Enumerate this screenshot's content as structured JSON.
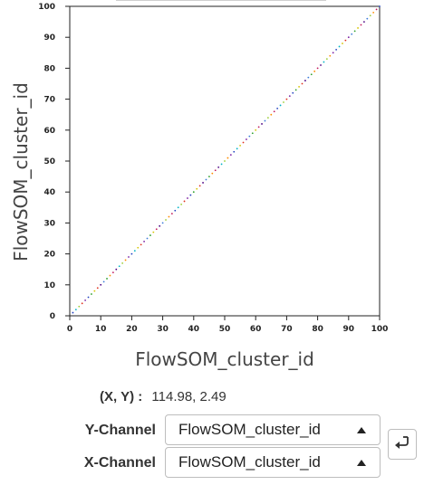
{
  "chart_data": {
    "type": "scatter",
    "xlabel": "FlowSOM_cluster_id",
    "ylabel": "FlowSOM_cluster_id",
    "xlim": [
      0,
      100
    ],
    "ylim": [
      0,
      100
    ],
    "x_ticks": [
      0,
      10,
      20,
      30,
      40,
      50,
      60,
      70,
      80,
      90,
      100
    ],
    "y_ticks": [
      0,
      10,
      20,
      30,
      40,
      50,
      60,
      70,
      80,
      90,
      100
    ],
    "grid": false,
    "points_description_free": true,
    "series": [
      {
        "x": [
          1,
          2,
          3,
          4,
          5,
          6,
          7,
          8,
          9,
          10,
          11,
          12,
          13,
          14,
          15,
          16,
          17,
          18,
          19,
          20,
          21,
          22,
          23,
          24,
          25,
          26,
          27,
          28,
          29,
          30,
          31,
          32,
          33,
          34,
          35,
          36,
          37,
          38,
          39,
          40,
          41,
          42,
          43,
          44,
          45,
          46,
          47,
          48,
          49,
          50,
          51,
          52,
          53,
          54,
          55,
          56,
          57,
          58,
          59,
          60,
          61,
          62,
          63,
          64,
          65,
          66,
          67,
          68,
          69,
          70,
          71,
          72,
          73,
          74,
          75,
          76,
          77,
          78,
          79,
          80,
          81,
          82,
          83,
          84,
          85,
          86,
          87,
          88,
          89,
          90,
          91,
          92,
          93,
          94,
          95,
          96,
          97,
          98,
          99,
          100
        ],
        "y": [
          1,
          2,
          3,
          4,
          5,
          6,
          7,
          8,
          9,
          10,
          11,
          12,
          13,
          14,
          15,
          16,
          17,
          18,
          19,
          20,
          21,
          22,
          23,
          24,
          25,
          26,
          27,
          28,
          29,
          30,
          31,
          32,
          33,
          34,
          35,
          36,
          37,
          38,
          39,
          40,
          41,
          42,
          43,
          44,
          45,
          46,
          47,
          48,
          49,
          50,
          51,
          52,
          53,
          54,
          55,
          56,
          57,
          58,
          59,
          60,
          61,
          62,
          63,
          64,
          65,
          66,
          67,
          68,
          69,
          70,
          71,
          72,
          73,
          74,
          75,
          76,
          77,
          78,
          79,
          80,
          81,
          82,
          83,
          84,
          85,
          86,
          87,
          88,
          89,
          90,
          91,
          92,
          93,
          94,
          95,
          96,
          97,
          98,
          99,
          100
        ]
      }
    ],
    "colors": [
      "#1f3fbf",
      "#3a7ad8",
      "#00b3c6",
      "#2ca02c",
      "#9acd32",
      "#d6c400",
      "#ff8c00",
      "#e0301e",
      "#c2185b",
      "#7b1fa2",
      "#4b0082"
    ]
  },
  "coords": {
    "label": "(X, Y) :",
    "value": "114.98, 2.49"
  },
  "y_channel": {
    "label": "Y-Channel",
    "value": "FlowSOM_cluster_id"
  },
  "x_channel": {
    "label": "X-Channel",
    "value": "FlowSOM_cluster_id"
  },
  "icons": {
    "caret": "caret-up-icon",
    "swap": "swap-axes-icon"
  }
}
